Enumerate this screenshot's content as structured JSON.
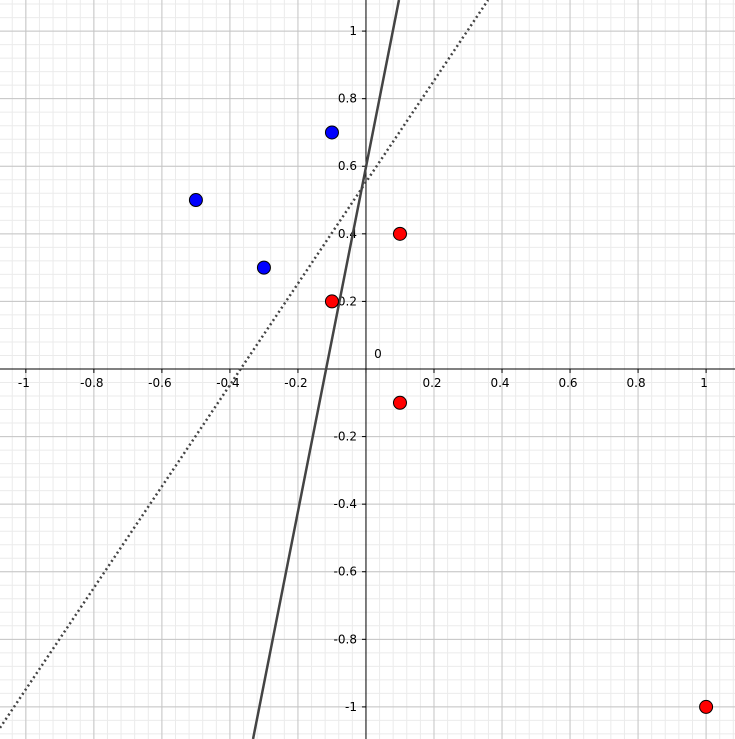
{
  "chart_data": {
    "type": "scatter",
    "xlim": [
      -1.076,
      1.085
    ],
    "ylim": [
      -1.095,
      1.092
    ],
    "xticks": [
      -1,
      -0.8,
      -0.6,
      -0.4,
      -0.2,
      0,
      0.2,
      0.4,
      0.6,
      0.8,
      1
    ],
    "yticks": [
      -1,
      -0.8,
      -0.6,
      -0.4,
      -0.2,
      0.2,
      0.4,
      0.6,
      0.8,
      1
    ],
    "grid": true,
    "series": [
      {
        "color": "#0000ff",
        "x": [
          -0.1,
          -0.5,
          -0.3
        ],
        "values": [
          0.7,
          0.5,
          0.3
        ]
      },
      {
        "color": "#ff0000",
        "x": [
          0.1,
          -0.1,
          0.1,
          1
        ],
        "values": [
          0.4,
          0.2,
          -0.1,
          -1
        ]
      }
    ],
    "lines": [
      {
        "style": "solid",
        "color": "#444444",
        "x": [
          -0.332,
          0.097
        ],
        "values": [
          -1.095,
          1.092
        ]
      },
      {
        "style": "dotted",
        "color": "#444444",
        "x": [
          -1.076,
          0.359
        ],
        "values": [
          -1.062,
          1.092
        ]
      }
    ]
  }
}
